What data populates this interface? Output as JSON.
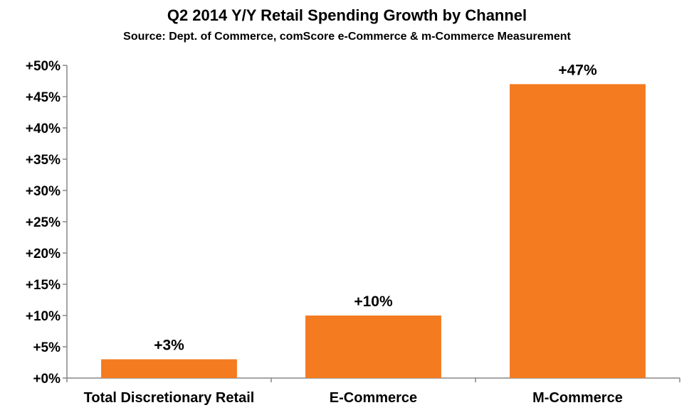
{
  "chart_data": {
    "type": "bar",
    "title": "Q2 2014 Y/Y Retail Spending Growth by Channel",
    "subtitle": "Source: Dept. of Commerce, comScore e-Commerce & m-Commerce Measurement",
    "categories": [
      "Total Discretionary Retail",
      "E-Commerce",
      "M-Commerce"
    ],
    "values": [
      3,
      10,
      47
    ],
    "data_labels": [
      "+3%",
      "+10%",
      "+47%"
    ],
    "ylim": [
      0,
      50
    ],
    "yticks": [
      0,
      5,
      10,
      15,
      20,
      25,
      30,
      35,
      40,
      45,
      50
    ],
    "ytick_labels": [
      "+0%",
      "+5%",
      "+10%",
      "+15%",
      "+20%",
      "+25%",
      "+30%",
      "+35%",
      "+40%",
      "+45%",
      "+50%"
    ],
    "xlabel": "",
    "ylabel": "",
    "grid": false,
    "bar_color": "#F47B20",
    "axis_color": "#878787"
  }
}
